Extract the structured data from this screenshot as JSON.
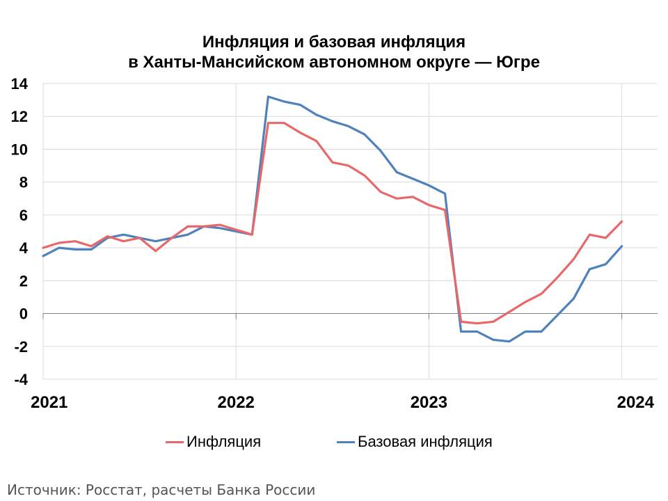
{
  "chart_data": {
    "type": "line",
    "title_line1": "Инфляция и базовая инфляция",
    "title_line2": "в Ханты-Мансийском автономном округе — Югре",
    "ylim": [
      -4,
      14
    ],
    "yticks": [
      "14",
      "12",
      "10",
      "8",
      "6",
      "4",
      "2",
      "0",
      "-2",
      "-4"
    ],
    "xticks": [
      "2021",
      "2022",
      "2023",
      "2024"
    ],
    "grid": true,
    "legend_position": "bottom",
    "months": [
      "2021-01",
      "2021-02",
      "2021-03",
      "2021-04",
      "2021-05",
      "2021-06",
      "2021-07",
      "2021-08",
      "2021-09",
      "2021-10",
      "2021-11",
      "2021-12",
      "2022-01",
      "2022-02",
      "2022-03",
      "2022-04",
      "2022-05",
      "2022-06",
      "2022-07",
      "2022-08",
      "2022-09",
      "2022-10",
      "2022-11",
      "2022-12",
      "2023-01",
      "2023-02",
      "2023-03",
      "2023-04",
      "2023-05",
      "2023-06",
      "2023-07",
      "2023-08",
      "2023-09",
      "2023-10",
      "2023-11",
      "2023-12",
      "2024-01"
    ],
    "series": [
      {
        "name": "Инфляция",
        "color": "#e8686a",
        "values": [
          4.0,
          4.3,
          4.4,
          4.1,
          4.7,
          4.4,
          4.6,
          3.8,
          4.6,
          5.3,
          5.3,
          5.4,
          5.1,
          4.8,
          11.6,
          11.6,
          11.0,
          10.5,
          9.2,
          9.0,
          8.4,
          7.4,
          7.0,
          7.1,
          6.6,
          6.3,
          -0.5,
          -0.6,
          -0.5,
          0.1,
          0.7,
          1.2,
          2.2,
          3.3,
          4.8,
          4.6,
          5.6
        ]
      },
      {
        "name": "Базовая инфляция",
        "color": "#4f81bd",
        "values": [
          3.5,
          4.0,
          3.9,
          3.9,
          4.6,
          4.8,
          4.6,
          4.4,
          4.6,
          4.8,
          5.3,
          5.2,
          5.0,
          4.8,
          13.2,
          12.9,
          12.7,
          12.1,
          11.7,
          11.4,
          10.9,
          9.9,
          8.6,
          8.2,
          7.8,
          7.3,
          -1.1,
          -1.1,
          -1.6,
          -1.7,
          -1.1,
          -1.1,
          -0.1,
          0.9,
          2.7,
          3.0,
          4.1
        ]
      }
    ]
  },
  "source": "Источник: Росстат, расчеты Банка России"
}
